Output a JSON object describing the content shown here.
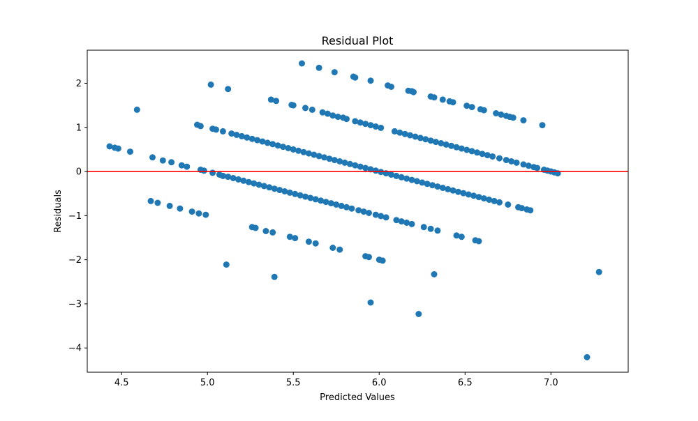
{
  "chart_data": {
    "type": "scatter",
    "title": "Residual Plot",
    "xlabel": "Predicted Values",
    "ylabel": "Residuals",
    "xlim": [
      4.3,
      7.45
    ],
    "ylim": [
      -4.55,
      2.75
    ],
    "xticks": [
      4.5,
      5.0,
      5.5,
      6.0,
      6.5,
      7.0
    ],
    "xtick_labels": [
      "4.5",
      "5.0",
      "5.5",
      "6.0",
      "6.5",
      "7.0"
    ],
    "yticks": [
      -4,
      -3,
      -2,
      -1,
      0,
      1,
      2
    ],
    "ytick_labels": [
      "−4",
      "−3",
      "−2",
      "−1",
      "0",
      "1",
      "2"
    ],
    "grid": false,
    "point_color": "#1f77b4",
    "reference_line": {
      "y": 0,
      "color": "#ff0000"
    },
    "series": [
      {
        "values": [
          [
            4.43,
            0.57
          ],
          [
            4.46,
            0.54
          ],
          [
            4.48,
            0.52
          ],
          [
            4.55,
            0.45
          ],
          [
            4.59,
            1.4
          ],
          [
            4.68,
            0.32
          ],
          [
            4.74,
            0.25
          ],
          [
            4.79,
            0.21
          ],
          [
            4.85,
            0.14
          ],
          [
            4.88,
            0.11
          ],
          [
            4.94,
            1.06
          ],
          [
            4.96,
            1.03
          ],
          [
            4.96,
            0.04
          ],
          [
            4.98,
            0.02
          ],
          [
            5.02,
            1.97
          ],
          [
            5.03,
            0.97
          ],
          [
            5.05,
            0.95
          ],
          [
            5.09,
            0.91
          ],
          [
            5.12,
            1.87
          ],
          [
            4.67,
            -0.67
          ],
          [
            4.71,
            -0.71
          ],
          [
            4.78,
            -0.78
          ],
          [
            4.84,
            -0.84
          ],
          [
            4.91,
            -0.91
          ],
          [
            4.95,
            -0.95
          ],
          [
            4.99,
            -0.98
          ],
          [
            5.11,
            -2.11
          ],
          [
            5.39,
            -2.39
          ],
          [
            5.95,
            -2.97
          ],
          [
            6.23,
            -3.23
          ],
          [
            6.32,
            -2.33
          ],
          [
            7.21,
            -4.21
          ],
          [
            7.28,
            -2.28
          ],
          [
            5.26,
            -1.26
          ],
          [
            5.28,
            -1.28
          ],
          [
            5.34,
            -1.35
          ],
          [
            5.38,
            -1.38
          ],
          [
            5.48,
            -1.48
          ],
          [
            5.51,
            -1.51
          ],
          [
            5.59,
            -1.59
          ],
          [
            5.63,
            -1.63
          ],
          [
            5.73,
            -1.73
          ],
          [
            5.77,
            -1.77
          ],
          [
            5.92,
            -1.92
          ],
          [
            5.94,
            -1.94
          ],
          [
            6.0,
            -2.0
          ],
          [
            6.02,
            -2.02
          ],
          [
            5.55,
            2.45
          ],
          [
            5.65,
            2.35
          ],
          [
            5.74,
            2.25
          ],
          [
            5.85,
            2.15
          ],
          [
            5.86,
            2.13
          ],
          [
            5.95,
            2.06
          ],
          [
            6.05,
            1.95
          ],
          [
            6.07,
            1.92
          ],
          [
            6.17,
            1.83
          ],
          [
            6.19,
            1.82
          ],
          [
            6.2,
            1.8
          ],
          [
            6.3,
            1.7
          ],
          [
            6.32,
            1.68
          ],
          [
            6.37,
            1.63
          ],
          [
            6.41,
            1.59
          ],
          [
            6.43,
            1.57
          ],
          [
            6.51,
            1.49
          ],
          [
            6.54,
            1.46
          ],
          [
            6.59,
            1.41
          ],
          [
            6.61,
            1.39
          ],
          [
            6.68,
            1.32
          ],
          [
            6.71,
            1.29
          ],
          [
            6.74,
            1.26
          ],
          [
            6.76,
            1.24
          ],
          [
            6.78,
            1.22
          ],
          [
            6.84,
            1.16
          ],
          [
            6.95,
            1.05
          ],
          [
            5.37,
            1.63
          ],
          [
            5.4,
            1.6
          ],
          [
            5.49,
            1.51
          ],
          [
            5.5,
            1.5
          ],
          [
            5.57,
            1.44
          ],
          [
            5.61,
            1.4
          ],
          [
            5.67,
            1.34
          ],
          [
            5.7,
            1.31
          ],
          [
            5.73,
            1.27
          ],
          [
            5.76,
            1.24
          ],
          [
            5.79,
            1.22
          ],
          [
            5.81,
            1.19
          ],
          [
            5.86,
            1.14
          ],
          [
            5.89,
            1.11
          ],
          [
            5.92,
            1.08
          ],
          [
            5.95,
            1.05
          ],
          [
            5.98,
            1.02
          ],
          [
            6.01,
            0.99
          ],
          [
            6.09,
            0.91
          ],
          [
            6.12,
            0.88
          ],
          [
            6.15,
            0.85
          ],
          [
            6.18,
            0.82
          ],
          [
            6.21,
            0.79
          ],
          [
            6.24,
            0.76
          ],
          [
            6.27,
            0.73
          ],
          [
            6.3,
            0.7
          ],
          [
            6.33,
            0.67
          ],
          [
            6.36,
            0.64
          ],
          [
            6.39,
            0.61
          ],
          [
            6.42,
            0.58
          ],
          [
            6.45,
            0.55
          ],
          [
            6.48,
            0.52
          ],
          [
            6.51,
            0.49
          ],
          [
            6.54,
            0.46
          ],
          [
            6.57,
            0.43
          ],
          [
            6.6,
            0.4
          ],
          [
            6.63,
            0.37
          ],
          [
            6.66,
            0.34
          ],
          [
            6.7,
            0.3
          ],
          [
            6.74,
            0.26
          ],
          [
            6.77,
            0.23
          ],
          [
            6.8,
            0.2
          ],
          [
            6.84,
            0.16
          ],
          [
            6.87,
            0.13
          ],
          [
            6.9,
            0.1
          ],
          [
            6.92,
            0.08
          ],
          [
            6.96,
            0.04
          ],
          [
            6.98,
            0.02
          ],
          [
            7.0,
            0.0
          ],
          [
            7.02,
            -0.02
          ],
          [
            7.04,
            -0.04
          ],
          [
            5.14,
            0.86
          ],
          [
            5.17,
            0.83
          ],
          [
            5.2,
            0.8
          ],
          [
            5.23,
            0.77
          ],
          [
            5.26,
            0.74
          ],
          [
            5.29,
            0.71
          ],
          [
            5.32,
            0.68
          ],
          [
            5.35,
            0.65
          ],
          [
            5.38,
            0.62
          ],
          [
            5.41,
            0.59
          ],
          [
            5.44,
            0.56
          ],
          [
            5.47,
            0.53
          ],
          [
            5.5,
            0.5
          ],
          [
            5.53,
            0.47
          ],
          [
            5.56,
            0.44
          ],
          [
            5.59,
            0.41
          ],
          [
            5.62,
            0.38
          ],
          [
            5.65,
            0.35
          ],
          [
            5.68,
            0.32
          ],
          [
            5.71,
            0.29
          ],
          [
            5.74,
            0.26
          ],
          [
            5.77,
            0.23
          ],
          [
            5.8,
            0.2
          ],
          [
            5.83,
            0.17
          ],
          [
            5.86,
            0.14
          ],
          [
            5.89,
            0.11
          ],
          [
            5.92,
            0.08
          ],
          [
            5.95,
            0.05
          ],
          [
            5.98,
            0.02
          ],
          [
            6.01,
            -0.01
          ],
          [
            6.04,
            -0.04
          ],
          [
            6.07,
            -0.07
          ],
          [
            6.1,
            -0.1
          ],
          [
            6.13,
            -0.13
          ],
          [
            6.16,
            -0.16
          ],
          [
            6.19,
            -0.19
          ],
          [
            6.22,
            -0.22
          ],
          [
            6.25,
            -0.25
          ],
          [
            6.28,
            -0.28
          ],
          [
            6.31,
            -0.31
          ],
          [
            6.34,
            -0.34
          ],
          [
            6.37,
            -0.37
          ],
          [
            6.4,
            -0.4
          ],
          [
            6.43,
            -0.43
          ],
          [
            6.46,
            -0.46
          ],
          [
            6.49,
            -0.49
          ],
          [
            6.52,
            -0.52
          ],
          [
            6.55,
            -0.55
          ],
          [
            6.58,
            -0.58
          ],
          [
            6.61,
            -0.61
          ],
          [
            6.64,
            -0.64
          ],
          [
            6.67,
            -0.67
          ],
          [
            6.7,
            -0.7
          ],
          [
            6.75,
            -0.75
          ],
          [
            6.81,
            -0.81
          ],
          [
            6.83,
            -0.83
          ],
          [
            6.86,
            -0.86
          ],
          [
            6.88,
            -0.88
          ],
          [
            5.03,
            -0.03
          ],
          [
            5.07,
            -0.07
          ],
          [
            5.09,
            -0.1
          ],
          [
            5.12,
            -0.12
          ],
          [
            5.15,
            -0.15
          ],
          [
            5.18,
            -0.18
          ],
          [
            5.21,
            -0.21
          ],
          [
            5.24,
            -0.24
          ],
          [
            5.27,
            -0.27
          ],
          [
            5.3,
            -0.3
          ],
          [
            5.33,
            -0.33
          ],
          [
            5.36,
            -0.36
          ],
          [
            5.39,
            -0.39
          ],
          [
            5.42,
            -0.42
          ],
          [
            5.45,
            -0.45
          ],
          [
            5.48,
            -0.48
          ],
          [
            5.51,
            -0.51
          ],
          [
            5.54,
            -0.54
          ],
          [
            5.57,
            -0.57
          ],
          [
            5.6,
            -0.6
          ],
          [
            5.63,
            -0.63
          ],
          [
            5.66,
            -0.66
          ],
          [
            5.69,
            -0.69
          ],
          [
            5.72,
            -0.72
          ],
          [
            5.75,
            -0.75
          ],
          [
            5.78,
            -0.78
          ],
          [
            5.81,
            -0.81
          ],
          [
            5.84,
            -0.84
          ],
          [
            5.88,
            -0.88
          ],
          [
            5.91,
            -0.91
          ],
          [
            5.94,
            -0.94
          ],
          [
            5.98,
            -0.98
          ],
          [
            6.01,
            -1.01
          ],
          [
            6.04,
            -1.04
          ],
          [
            6.1,
            -1.1
          ],
          [
            6.13,
            -1.13
          ],
          [
            6.16,
            -1.16
          ],
          [
            6.19,
            -1.19
          ],
          [
            6.26,
            -1.26
          ],
          [
            6.3,
            -1.3
          ],
          [
            6.34,
            -1.34
          ],
          [
            6.45,
            -1.45
          ],
          [
            6.48,
            -1.48
          ],
          [
            6.56,
            -1.56
          ],
          [
            6.58,
            -1.58
          ]
        ]
      }
    ]
  }
}
